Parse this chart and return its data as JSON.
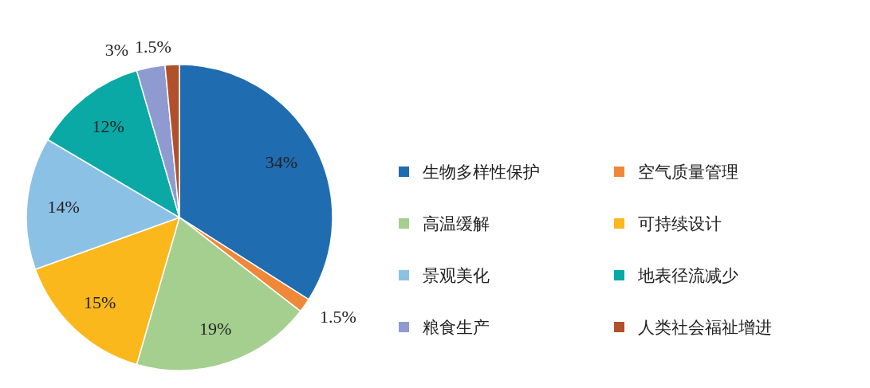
{
  "chart_data": {
    "type": "pie",
    "categories": [
      "生物多样性保护",
      "空气质量管理",
      "高温缓解",
      "可持续设计",
      "景观美化",
      "地表径流减少",
      "粮食生产",
      "人类社会福祉增进"
    ],
    "values": [
      34,
      1.5,
      19,
      15,
      14,
      12,
      3,
      1.5
    ],
    "value_labels": [
      "34%",
      "1.5%",
      "19%",
      "15%",
      "14%",
      "12%",
      "3%",
      "1.5%"
    ],
    "colors": [
      "#1f6cb0",
      "#f0883a",
      "#a5cf8f",
      "#fbb81c",
      "#8cc1e6",
      "#0aa9a5",
      "#8f9bd0",
      "#b0512b"
    ],
    "legend": "right"
  }
}
